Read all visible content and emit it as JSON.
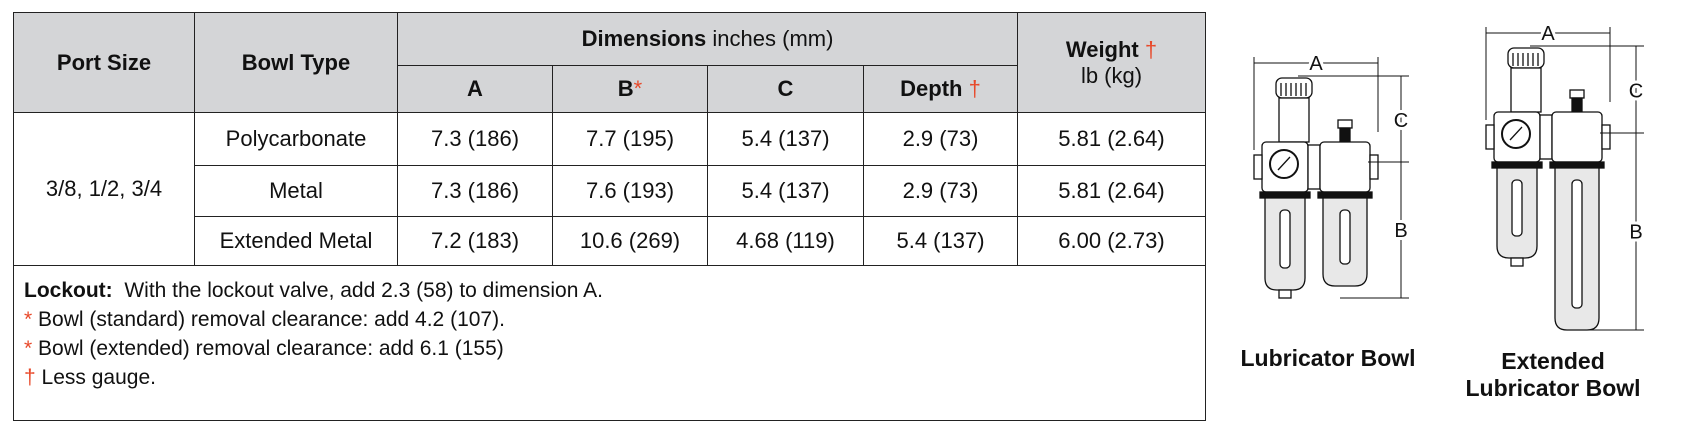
{
  "table": {
    "headers": {
      "port_size": "Port Size",
      "bowl_type": "Bowl Type",
      "dimensions_bold": "Dimensions",
      "dimensions_unit": "inches (mm)",
      "a": "A",
      "b": "B",
      "b_mark": "*",
      "c": "C",
      "depth": "Depth",
      "depth_mark": "†",
      "weight": "Weight",
      "weight_mark": "†",
      "weight_unit": "lb (kg)"
    },
    "port_size": "3/8, 1/2, 3/4",
    "rows": [
      {
        "bowl": "Polycarbonate",
        "a": "7.3 (186)",
        "b": "7.7 (195)",
        "c": "5.4 (137)",
        "depth": "2.9 (73)",
        "weight": "5.81 (2.64)"
      },
      {
        "bowl": "Metal",
        "a": "7.3 (186)",
        "b": "7.6 (193)",
        "c": "5.4 (137)",
        "depth": "2.9 (73)",
        "weight": "5.81 (2.64)"
      },
      {
        "bowl": "Extended Metal",
        "a": "7.2 (183)",
        "b": "10.6 (269)",
        "c": "4.68 (119)",
        "depth": "5.4 (137)",
        "weight": "6.00 (2.73)"
      }
    ],
    "notes": {
      "lockout_label": "Lockout:",
      "lockout_text": "With the lockout valve, add 2.3 (58) to dimension A.",
      "star": "*",
      "note1": "Bowl (standard) removal clearance:  add 4.2 (107).",
      "note2": "Bowl (extended) removal clearance:  add 6.1 (155)",
      "dagger": "†",
      "note3": "Less gauge."
    }
  },
  "diagrams": {
    "labels": {
      "a": "A",
      "b": "B",
      "c": "C"
    },
    "caption1": "Lubricator Bowl",
    "caption2_line1": "Extended",
    "caption2_line2": "Lubricator Bowl"
  },
  "colors": {
    "header_bg": "#d4d5d7",
    "accent": "#e8492a"
  }
}
